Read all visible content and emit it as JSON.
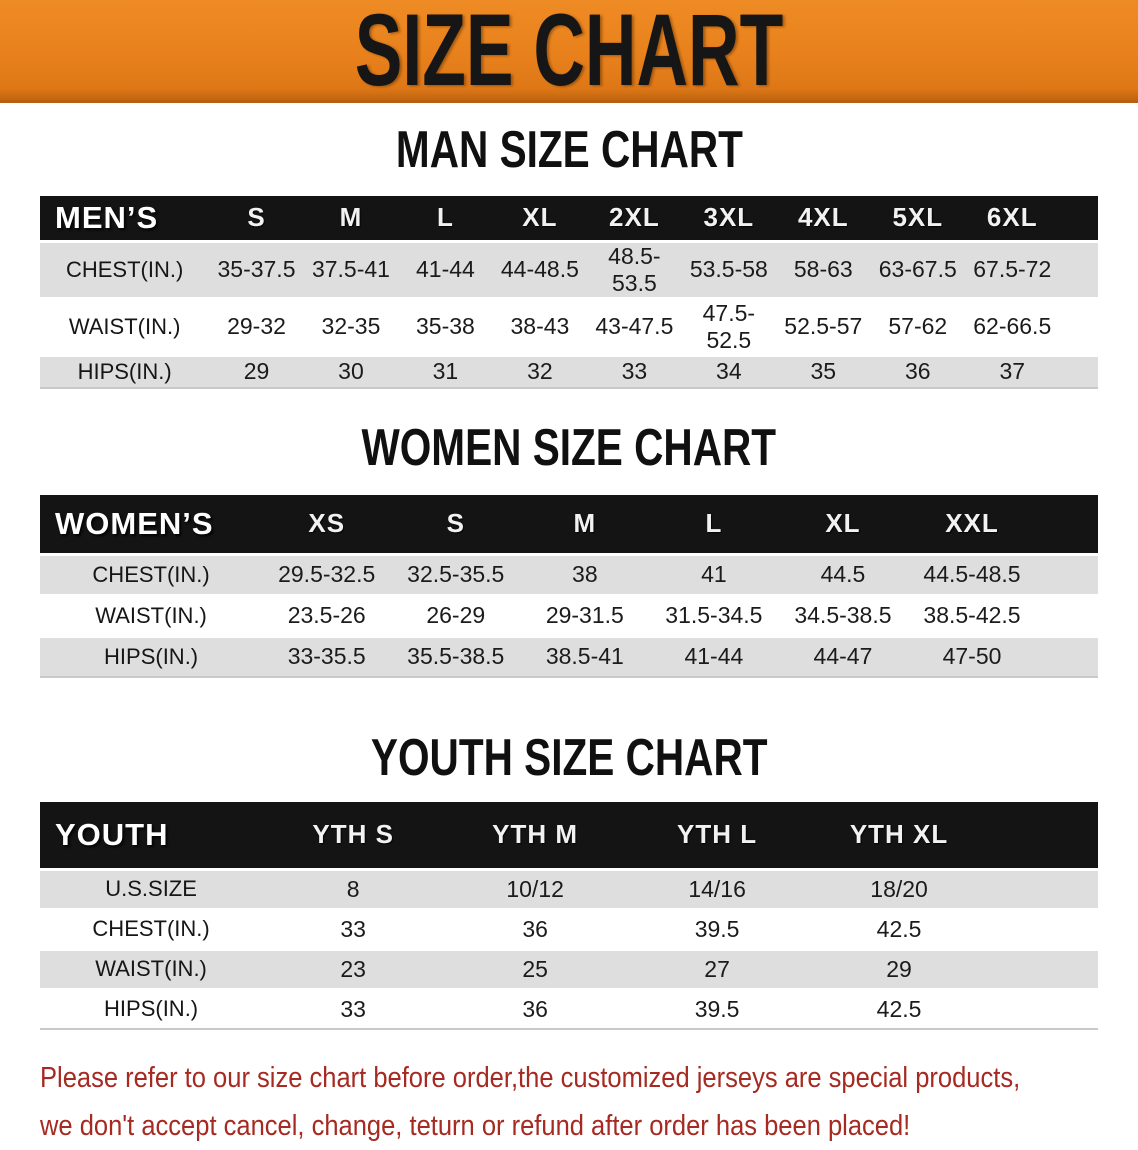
{
  "banner": {
    "title": "SIZE CHART"
  },
  "chart_data": [
    {
      "type": "table",
      "title": "MAN SIZE CHART",
      "corner_label": "MEN’S",
      "columns": [
        "S",
        "M",
        "L",
        "XL",
        "2XL",
        "3XL",
        "4XL",
        "5XL",
        "6XL"
      ],
      "rows": [
        {
          "label": "CHEST(IN.)",
          "values": [
            "35-37.5",
            "37.5-41",
            "41-44",
            "44-48.5",
            "48.5-53.5",
            "53.5-58",
            "58-63",
            "63-67.5",
            "67.5-72"
          ]
        },
        {
          "label": "WAIST(IN.)",
          "values": [
            "29-32",
            "32-35",
            "35-38",
            "38-43",
            "43-47.5",
            "47.5-52.5",
            "52.5-57",
            "57-62",
            "62-66.5"
          ]
        },
        {
          "label": "HIPS(IN.)",
          "values": [
            "29",
            "30",
            "31",
            "32",
            "33",
            "34",
            "35",
            "36",
            "37"
          ]
        }
      ]
    },
    {
      "type": "table",
      "title": "WOMEN SIZE CHART",
      "corner_label": "WOMEN’S",
      "columns": [
        "XS",
        "S",
        "M",
        "L",
        "XL",
        "XXL"
      ],
      "rows": [
        {
          "label": "CHEST(IN.)",
          "values": [
            "29.5-32.5",
            "32.5-35.5",
            "38",
            "41",
            "44.5",
            "44.5-48.5"
          ]
        },
        {
          "label": "WAIST(IN.)",
          "values": [
            "23.5-26",
            "26-29",
            "29-31.5",
            "31.5-34.5",
            "34.5-38.5",
            "38.5-42.5"
          ]
        },
        {
          "label": "HIPS(IN.)",
          "values": [
            "33-35.5",
            "35.5-38.5",
            "38.5-41",
            "41-44",
            "44-47",
            "47-50"
          ]
        }
      ]
    },
    {
      "type": "table",
      "title": "YOUTH SIZE CHART",
      "corner_label": "YOUTH",
      "columns": [
        "YTH S",
        "YTH M",
        "YTH L",
        "YTH XL"
      ],
      "rows": [
        {
          "label": "U.S.SIZE",
          "values": [
            "8",
            "10/12",
            "14/16",
            "18/20"
          ]
        },
        {
          "label": "CHEST(IN.)",
          "values": [
            "33",
            "36",
            "39.5",
            "42.5"
          ]
        },
        {
          "label": "WAIST(IN.)",
          "values": [
            "23",
            "25",
            "27",
            "29"
          ]
        },
        {
          "label": "HIPS(IN.)",
          "values": [
            "33",
            "36",
            "39.5",
            "42.5"
          ]
        }
      ]
    }
  ],
  "footer": {
    "line1": "Please refer to our size chart before order,the customized jerseys are special products,",
    "line2": "we don't accept cancel, change, teturn or refund after order has been placed!"
  },
  "colors": {
    "banner_orange": "#e8811c",
    "header_bar_black": "#141414",
    "row_stripe_gray": "#dedede",
    "notice_red": "#a62a22"
  }
}
